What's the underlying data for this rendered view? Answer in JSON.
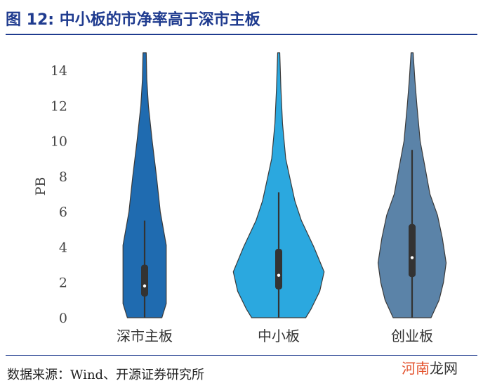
{
  "figure": {
    "title": "图 12:  中小板的市净率高于深市主板",
    "source": "数据来源：Wind、开源证券研究所",
    "watermark_a": "河南",
    "watermark_b": "龙网",
    "title_color": "#1f3b8f"
  },
  "chart_data": {
    "type": "violin",
    "title": "",
    "xlabel": "",
    "ylabel": "PB",
    "ylim": [
      0,
      15
    ],
    "yticks": [
      "0",
      "2",
      "4",
      "6",
      "8",
      "10",
      "12",
      "14"
    ],
    "categories": [
      "深市主板",
      "中小板",
      "创业板"
    ],
    "colors": [
      "#1f6bb0",
      "#2ba8df",
      "#5b83a8"
    ],
    "series": [
      {
        "category": "深市主板",
        "median": 1.8,
        "q1": 1.2,
        "q3": 3.0,
        "whisker_low": 0,
        "whisker_high": 5.5,
        "density": [
          [
            0,
            0.32
          ],
          [
            0.8,
            0.4
          ],
          [
            2,
            0.4
          ],
          [
            4.1,
            0.4
          ],
          [
            6,
            0.29
          ],
          [
            8,
            0.22
          ],
          [
            10,
            0.14
          ],
          [
            12,
            0.07
          ],
          [
            13.5,
            0.04
          ],
          [
            15,
            0.03
          ]
        ]
      },
      {
        "category": "中小板",
        "median": 2.4,
        "q1": 1.6,
        "q3": 3.9,
        "whisker_low": 0,
        "whisker_high": 7.1,
        "density": [
          [
            0,
            0.5
          ],
          [
            0.5,
            0.6
          ],
          [
            1.5,
            0.76
          ],
          [
            2.6,
            0.84
          ],
          [
            4,
            0.65
          ],
          [
            5.5,
            0.42
          ],
          [
            6.6,
            0.3
          ],
          [
            8,
            0.2
          ],
          [
            9,
            0.13
          ],
          [
            11,
            0.07
          ],
          [
            13,
            0.04
          ],
          [
            15,
            0.02
          ]
        ]
      },
      {
        "category": "创业板",
        "median": 3.4,
        "q1": 2.3,
        "q3": 5.3,
        "whisker_low": 0,
        "whisker_high": 9.5,
        "density": [
          [
            0,
            0.35
          ],
          [
            1,
            0.5
          ],
          [
            2,
            0.58
          ],
          [
            3.1,
            0.63
          ],
          [
            4.5,
            0.56
          ],
          [
            5.8,
            0.47
          ],
          [
            7,
            0.33
          ],
          [
            8.5,
            0.24
          ],
          [
            10,
            0.15
          ],
          [
            12,
            0.09
          ],
          [
            13.5,
            0.05
          ],
          [
            15,
            0.02
          ]
        ]
      }
    ]
  }
}
